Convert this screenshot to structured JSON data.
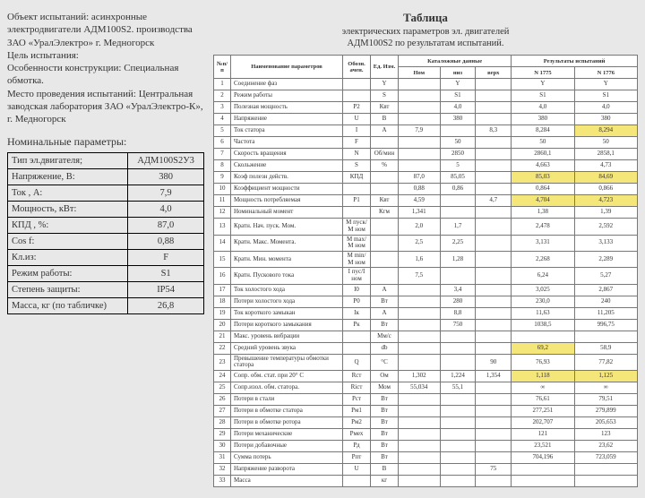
{
  "left": {
    "intro": "Объект испытаний: асинхронные электродвигатели АДМ100S2. производства ЗАО «УралЭлектро» г. Медногорск\nЦель испытания:\nОсобенности конструкции: Специальная обмотка.\nМесто проведения испытаний: Центральная заводская лаборатория ЗАО «УралЭлектро-К», г. Медногорск",
    "nom_title": "Номинальные параметры:",
    "nom_rows": [
      [
        "Тип эл.двигателя;",
        "АДМ100S2У3"
      ],
      [
        "Напряжение, В:",
        "380"
      ],
      [
        "Ток , А:",
        "7,9"
      ],
      [
        "Мощность, кВт:",
        "4,0"
      ],
      [
        "КПД , %:",
        "87,0"
      ],
      [
        "Cos f:",
        "0,88"
      ],
      [
        "Кл.из:",
        "F"
      ],
      [
        "Режим работы:",
        "S1"
      ],
      [
        "Степень защиты:",
        "IP54"
      ],
      [
        "Масса, кг (по табличке)",
        "26,8"
      ]
    ]
  },
  "right": {
    "title": "Таблица",
    "sub1": "электрических параметров эл. двигателей",
    "sub2": "АДМ100S2   по результатам испытаний.",
    "header": {
      "num": "№п/п",
      "name": "Наименование параметров",
      "ob": "Обозн. ачен.",
      "ed": "Ед. Изм.",
      "cat": "Каталожные данные",
      "res": "Результаты испытаний",
      "nom": "Ном",
      "niz": "низ",
      "verh": "верх",
      "n1": "N 1775",
      "n2": "N 1776"
    },
    "rows": [
      {
        "n": "1",
        "name": "Соединение фаз",
        "ob": "",
        "ed": "Y",
        "nom": "",
        "niz": "Y",
        "v": "",
        "r1": "Y",
        "r2": "Y"
      },
      {
        "n": "2",
        "name": "Режим работы",
        "ob": "",
        "ed": "S",
        "nom": "",
        "niz": "S1",
        "v": "",
        "r1": "S1",
        "r2": "S1"
      },
      {
        "n": "3",
        "name": "Полезная мощность",
        "ob": "P2",
        "ed": "Квт",
        "nom": "",
        "niz": "4,0",
        "v": "",
        "r1": "4,0",
        "r2": "4,0"
      },
      {
        "n": "4",
        "name": "Напряжение",
        "ob": "U",
        "ed": "В",
        "nom": "",
        "niz": "380",
        "v": "",
        "r1": "380",
        "r2": "380"
      },
      {
        "n": "5",
        "name": "Ток статора",
        "ob": "I",
        "ed": "А",
        "nom": "7,9",
        "niz": "",
        "v": "8,3",
        "r1": "8,284",
        "r2": "8,294",
        "hl": "5"
      },
      {
        "n": "6",
        "name": "Частота",
        "ob": "F",
        "ed": "",
        "nom": "",
        "niz": "50",
        "v": "",
        "r1": "50",
        "r2": "50"
      },
      {
        "n": "7",
        "name": "Скорость вращения",
        "ob": "N",
        "ed": "Об/мин",
        "nom": "",
        "niz": "2850",
        "v": "",
        "r1": "2860,1",
        "r2": "2858,1"
      },
      {
        "n": "8",
        "name": "Скольжение",
        "ob": "S",
        "ed": "%",
        "nom": "",
        "niz": "5",
        "v": "",
        "r1": "4,663",
        "r2": "4,73"
      },
      {
        "n": "9",
        "name": "Коэф полезн действ.",
        "ob": "КПД",
        "ed": "",
        "nom": "87,0",
        "niz": "85,05",
        "v": "",
        "r1": "85,03",
        "r2": "84,69",
        "hl": "45"
      },
      {
        "n": "10",
        "name": "Коэффициент мощности",
        "ob": "",
        "ed": "",
        "nom": "0,88",
        "niz": "0,86",
        "v": "",
        "r1": "0,864",
        "r2": "0,866"
      },
      {
        "n": "11",
        "name": "Мощность потребляемая",
        "ob": "P1",
        "ed": "Квт",
        "nom": "4,59",
        "niz": "",
        "v": "4,7",
        "r1": "4,704",
        "r2": "4,723",
        "hl": "45"
      },
      {
        "n": "12",
        "name": "Номинальный момент",
        "ob": "",
        "ed": "Кгм",
        "nom": "1,341",
        "niz": "",
        "v": "",
        "r1": "1,38",
        "r2": "1,39"
      },
      {
        "n": "13",
        "name": "Кратн. Нач. пуск. Мом.",
        "ob": "М пуск/М ном",
        "ed": "",
        "nom": "2,0",
        "niz": "1,7",
        "v": "",
        "r1": "2,478",
        "r2": "2,592"
      },
      {
        "n": "14",
        "name": "Кратн. Макс. Момента.",
        "ob": "М max/М ном",
        "ed": "",
        "nom": "2,5",
        "niz": "2,25",
        "v": "",
        "r1": "3,131",
        "r2": "3,133"
      },
      {
        "n": "15",
        "name": "Кратн. Мин. момента",
        "ob": "М min/М ном",
        "ed": "",
        "nom": "1,6",
        "niz": "1,28",
        "v": "",
        "r1": "2,268",
        "r2": "2,289"
      },
      {
        "n": "16",
        "name": "Кратн. Пускового тока",
        "ob": "I пус/I ном",
        "ed": "",
        "nom": "7,5",
        "niz": "",
        "v": "",
        "r1": "6,24",
        "r2": "5,27"
      },
      {
        "n": "17",
        "name": "Ток холостого хода",
        "ob": "I0",
        "ed": "А",
        "nom": "",
        "niz": "3,4",
        "v": "",
        "r1": "3,025",
        "r2": "2,867"
      },
      {
        "n": "18",
        "name": "Потери холостого хода",
        "ob": "P0",
        "ed": "Вт",
        "nom": "",
        "niz": "280",
        "v": "",
        "r1": "230,0",
        "r2": "240"
      },
      {
        "n": "19",
        "name": "Ток короткого замыкан",
        "ob": "Iк",
        "ed": "А",
        "nom": "",
        "niz": "8,8",
        "v": "",
        "r1": "11,63",
        "r2": "11,205"
      },
      {
        "n": "20",
        "name": "Потери короткого замыкания",
        "ob": "Рк",
        "ed": "Вт",
        "nom": "",
        "niz": "750",
        "v": "",
        "r1": "1038,5",
        "r2": "996,75"
      },
      {
        "n": "21",
        "name": "Макс. уровень вибрации",
        "ob": "",
        "ed": "Мм/с",
        "nom": "",
        "niz": "",
        "v": "",
        "r1": "",
        "r2": ""
      },
      {
        "n": "22",
        "name": "Средний уровень звука",
        "ob": "",
        "ed": "db",
        "nom": "",
        "niz": "",
        "v": "",
        "r1": "69,2",
        "r2": "58,9",
        "hl": "4"
      },
      {
        "n": "23",
        "name": "Превышение температуры обмотки статора",
        "ob": "Q",
        "ed": "°С",
        "nom": "",
        "niz": "",
        "v": "90",
        "r1": "76,93",
        "r2": "77,82"
      },
      {
        "n": "24",
        "name": "Сопр. обм. стат. при 20° С",
        "ob": "Rст",
        "ed": "Ом",
        "nom": "1,302",
        "niz": "1,224",
        "v": "1,354",
        "r1": "1,118",
        "r2": "1,125",
        "hl": "45"
      },
      {
        "n": "25",
        "name": "Сопр.изол. обм. статора.",
        "ob": "Riст",
        "ed": "Мом",
        "nom": "55,034",
        "niz": "55,1",
        "v": "",
        "r1": "∞",
        "r2": "∞"
      },
      {
        "n": "26",
        "name": "Потери в стали",
        "ob": "Рст",
        "ed": "Вт",
        "nom": "",
        "niz": "",
        "v": "",
        "r1": "76,61",
        "r2": "79,51"
      },
      {
        "n": "27",
        "name": "Потери в обмотке статора",
        "ob": "Рм1",
        "ed": "Вт",
        "nom": "",
        "niz": "",
        "v": "",
        "r1": "277,251",
        "r2": "279,899"
      },
      {
        "n": "28",
        "name": "Потери в обмотке ротора",
        "ob": "Рм2",
        "ed": "Вт",
        "nom": "",
        "niz": "",
        "v": "",
        "r1": "202,707",
        "r2": "205,653"
      },
      {
        "n": "29",
        "name": "Потери механические",
        "ob": "Рмех",
        "ed": "Вт",
        "nom": "",
        "niz": "",
        "v": "",
        "r1": "121",
        "r2": "123"
      },
      {
        "n": "30",
        "name": "Потери добавочные",
        "ob": "Рд",
        "ed": "Вт",
        "nom": "",
        "niz": "",
        "v": "",
        "r1": "23,521",
        "r2": "23,62"
      },
      {
        "n": "31",
        "name": "Сумма потерь",
        "ob": "Рпт",
        "ed": "Вт",
        "nom": "",
        "niz": "",
        "v": "",
        "r1": "704,196",
        "r2": "723,059"
      },
      {
        "n": "32",
        "name": "Напряжение разворота",
        "ob": "U",
        "ed": "В",
        "nom": "",
        "niz": "",
        "v": "75",
        "r1": "",
        "r2": ""
      },
      {
        "n": "33",
        "name": "Масса",
        "ob": "",
        "ed": "кг",
        "nom": "",
        "niz": "",
        "v": "",
        "r1": "",
        "r2": ""
      }
    ]
  }
}
